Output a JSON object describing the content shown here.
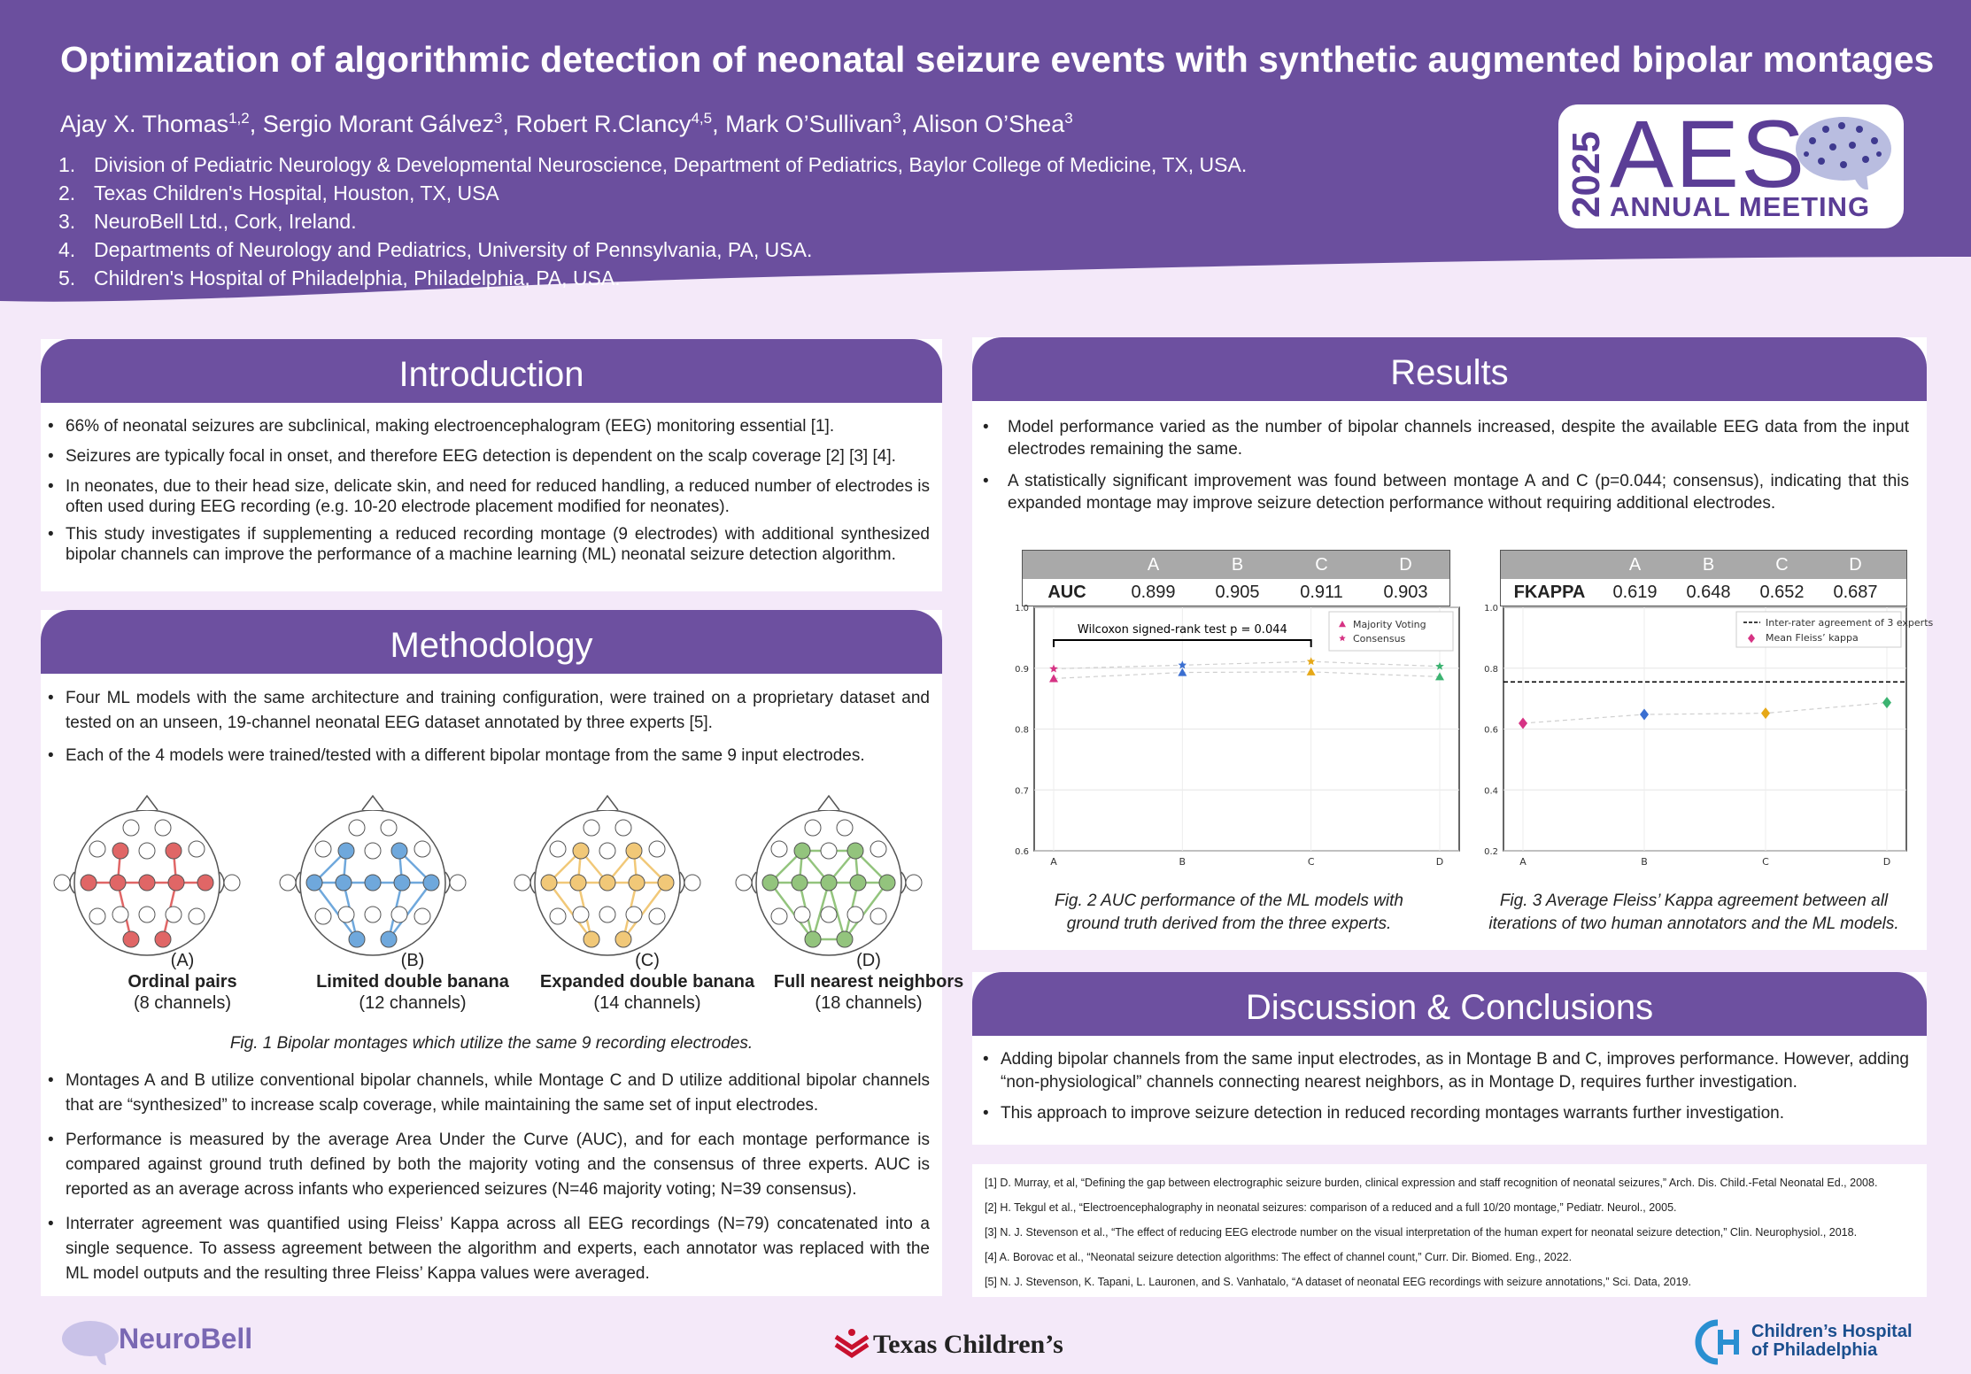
{
  "header": {
    "title": "Optimization of algorithmic detection of neonatal seizure events with synthetic augmented bipolar montages",
    "authors": [
      {
        "name": "Ajay X. Thomas",
        "sup": "1,2"
      },
      {
        "name": "Sergio Morant Gálvez",
        "sup": "3"
      },
      {
        "name": "Robert R.Clancy",
        "sup": "4,5"
      },
      {
        "name": "Mark O’Sullivan",
        "sup": "3"
      },
      {
        "name": "Alison O’Shea",
        "sup": "3"
      }
    ],
    "affiliations": [
      {
        "num": "1.",
        "text": "Division of Pediatric Neurology & Developmental Neuroscience, Department of Pediatrics, Baylor College of Medicine, TX, USA."
      },
      {
        "num": "2.",
        "text": "Texas Children's Hospital, Houston, TX, USA"
      },
      {
        "num": "3.",
        "text": "NeuroBell Ltd., Cork, Ireland."
      },
      {
        "num": "4.",
        "text": "Departments of Neurology and Pediatrics, University of Pennsylvania,  PA, USA."
      },
      {
        "num": "5.",
        "text": "Children's Hospital of Philadelphia, Philadelphia, PA, USA."
      }
    ],
    "badge": {
      "year": "2025",
      "big": "AES",
      "meeting": "ANNUAL MEETING"
    }
  },
  "intro": {
    "title": "Introduction",
    "bullets": [
      "66% of neonatal seizures are subclinical, making electroencephalogram (EEG) monitoring essential [1].",
      "Seizures are typically focal in onset, and therefore EEG detection is dependent on the scalp coverage [2] [3] [4].",
      "In neonates, due to their head size, delicate skin, and need for reduced handling, a reduced number of electrodes is often used during EEG recording (e.g. 10-20 electrode placement modified for neonates).",
      "This study investigates if supplementing a reduced recording montage (9 electrodes) with additional synthesized bipolar channels can improve the performance of a machine learning (ML) neonatal seizure detection algorithm."
    ]
  },
  "method": {
    "title": "Methodology",
    "bullets_top": [
      "Four ML models with the same architecture and training configuration, were trained on a proprietary dataset and tested on an unseen, 19-channel neonatal EEG dataset annotated by three experts [5].",
      "Each of the 4 models were trained/tested with a different bipolar montage from the same 9 input electrodes."
    ],
    "montages": [
      {
        "letter": "(A)",
        "name": "Ordinal pairs",
        "channels": "(8 channels)",
        "color": "#e06666"
      },
      {
        "letter": "(B)",
        "name": "Limited double banana",
        "channels": "(12 channels)",
        "color": "#6fa8dc"
      },
      {
        "letter": "(C)",
        "name": "Expanded double banana",
        "channels": "(14 channels)",
        "color": "#f1c878"
      },
      {
        "letter": "(D)",
        "name": "Full nearest neighbors",
        "channels": "(18 channels)",
        "color": "#93c47d"
      }
    ],
    "fig1_caption": "Fig. 1 Bipolar montages which utilize the same 9 recording electrodes.",
    "bullets_bottom": [
      "Montages A and B utilize conventional bipolar channels, while Montage C and D utilize additional bipolar channels that are “synthesized” to increase scalp coverage, while maintaining the same set of input electrodes.",
      "Performance is measured by the average Area Under the Curve (AUC), and for each montage performance is compared against ground truth defined by both the majority voting and the consensus of three experts. AUC is reported  as an average across infants who experienced seizures (N=46 majority voting; N=39 consensus).",
      "Interrater agreement was quantified using Fleiss’ Kappa across all EEG recordings (N=79) concatenated into a single sequence. To assess agreement between the algorithm and experts, each annotator was replaced with the ML model outputs and the resulting three Fleiss’ Kappa values were averaged."
    ]
  },
  "results": {
    "title": "Results",
    "bullets": [
      "Model performance varied as the number of bipolar channels increased, despite the available EEG data from the input electrodes remaining the same.",
      "A statistically significant improvement was found between montage A and C (p=0.044; consensus), indicating that this expanded montage may improve seizure detection performance without requiring additional electrodes."
    ],
    "auc_table": {
      "row_label": "AUC",
      "cols": [
        "A",
        "B",
        "C",
        "D"
      ],
      "values": [
        "0.899",
        "0.905",
        "0.911",
        "0.903"
      ]
    },
    "kappa_table": {
      "row_label": "FKAPPA",
      "cols": [
        "A",
        "B",
        "C",
        "D"
      ],
      "values": [
        "0.619",
        "0.648",
        "0.652",
        "0.687"
      ]
    },
    "fig2_caption": [
      "Fig. 2 AUC performance of the ML models with",
      "ground truth derived from the three experts."
    ],
    "fig3_caption": [
      "Fig. 3 Average Fleiss’ Kappa agreement between all",
      "iterations of two human annotators and the ML models."
    ]
  },
  "chart_data": [
    {
      "type": "scatter",
      "categories": [
        "A",
        "B",
        "C",
        "D"
      ],
      "ylim": [
        0.6,
        1.0
      ],
      "yticks": [
        "0.6",
        "0.7",
        "0.8",
        "0.9",
        "1.0"
      ],
      "series": [
        {
          "name": "Majority Voting",
          "marker": "triangle",
          "values": [
            0.883,
            0.893,
            0.894,
            0.886
          ]
        },
        {
          "name": "Consensus",
          "marker": "star",
          "values": [
            0.899,
            0.905,
            0.911,
            0.903
          ]
        }
      ],
      "annotation": "Wilcoxon signed-rank test p = 0.044",
      "point_colors": [
        "#d63384",
        "#3b6fd1",
        "#e6a817",
        "#3cb371"
      ],
      "legend": "top-right",
      "grid": true
    },
    {
      "type": "scatter",
      "categories": [
        "A",
        "B",
        "C",
        "D"
      ],
      "ylim": [
        0.2,
        1.0
      ],
      "yticks": [
        "0.2",
        "0.4",
        "0.6",
        "0.8",
        "1.0"
      ],
      "series": [
        {
          "name": "Mean Fleiss’ kappa",
          "marker": "diamond",
          "values": [
            0.619,
            0.648,
            0.652,
            0.687
          ]
        }
      ],
      "reference_line": {
        "name": "Inter-rater agreement of 3 experts",
        "value": 0.755
      },
      "point_colors": [
        "#d63384",
        "#3b6fd1",
        "#e6a817",
        "#3cb371"
      ],
      "legend": "top-right",
      "grid": true
    }
  ],
  "discussion": {
    "title": "Discussion & Conclusions",
    "bullets": [
      "Adding bipolar channels from the same input electrodes, as in Montage B and C, improves performance. However, adding “non-physiological” channels connecting nearest neighbors, as in Montage D,  requires further investigation.",
      "This approach to improve seizure detection in reduced recording montages warrants further investigation."
    ]
  },
  "references": [
    "[1]     D. Murray, et al, “Defining the gap between electrographic seizure burden, clinical expression and staff recognition of neonatal seizures,” Arch. Dis. Child.-Fetal Neonatal Ed.,  2008.",
    "[2]     H. Tekgul et al., “Electroencephalography in neonatal seizures: comparison of a reduced and a full 10/20 montage,” Pediatr. Neurol., 2005.",
    "[3]     N. J. Stevenson et al., “The effect of reducing EEG electrode number on the visual interpretation of the human expert for neonatal seizure detection,” Clin. Neurophysiol., 2018.",
    "[4]     A. Borovac et al., “Neonatal seizure detection algorithms: The effect of channel count,” Curr. Dir. Biomed. Eng., 2022.",
    "[5] N. J. Stevenson, K. Tapani, L. Lauronen, and S. Vanhatalo, “A dataset of neonatal EEG recordings with seizure annotations,” Sci. Data, 2019."
  ],
  "logos": {
    "neurobell": "NeuroBell",
    "texas": "Texas Children’s",
    "chop_line1": "Children’s Hospital",
    "chop_line2": "of Philadelphia"
  },
  "colors": {
    "header": "#6b4f9e",
    "panel_head": "#6d50a0",
    "background": "#f4e9f9"
  }
}
